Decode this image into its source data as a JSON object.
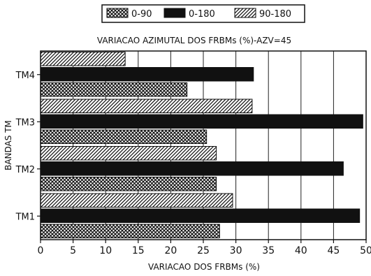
{
  "chart_data": {
    "type": "bar",
    "orientation": "horizontal",
    "title": "VARIACAO AZIMUTAL DOS FRBMs (%)-AZV=45",
    "xlabel": "VARIACAO DOS FRBMs (%)",
    "ylabel": "BANDAS TM",
    "categories": [
      "TM4",
      "TM3",
      "TM2",
      "TM1"
    ],
    "xlim": [
      0,
      50
    ],
    "xticks": [
      0,
      5,
      10,
      15,
      20,
      25,
      30,
      35,
      40,
      45,
      50
    ],
    "grid": "vertical",
    "legend_placement": "top",
    "series": [
      {
        "name": "0-90",
        "pattern": "crosshatch",
        "values": [
          22.5,
          25.5,
          27.0,
          27.5
        ]
      },
      {
        "name": "0-180",
        "pattern": "solid",
        "values": [
          32.7,
          49.5,
          46.5,
          49.0
        ]
      },
      {
        "name": "90-180",
        "pattern": "diagonal",
        "values": [
          13.0,
          32.5,
          27.0,
          29.5
        ]
      }
    ]
  }
}
